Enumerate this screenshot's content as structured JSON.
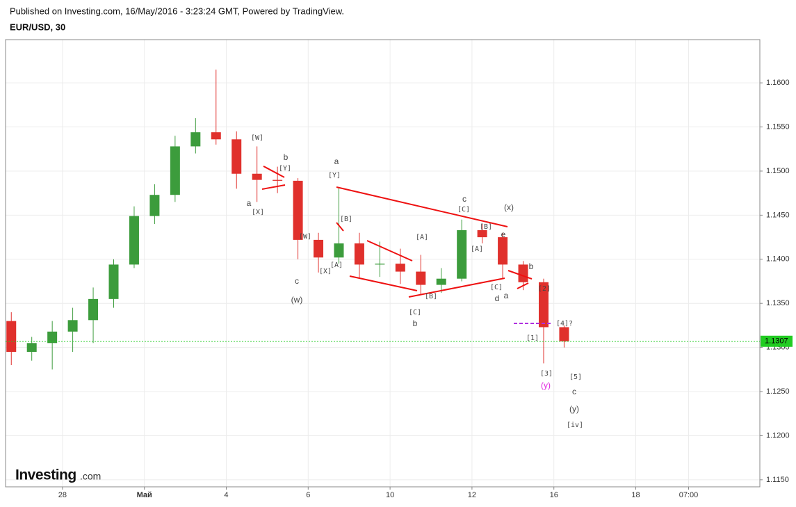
{
  "header": {
    "published": "Published on Investing.com, 16/May/2016 - 3:23:24 GMT, Powered by TradingView.",
    "symbol": "EUR/USD, 30"
  },
  "logo": {
    "main": "Investing",
    "suffix": ".com"
  },
  "chart_data": {
    "type": "candlestick",
    "x": [
      -1.25,
      -0.75,
      -0.25,
      0.25,
      0.75,
      1.25,
      1.75,
      2.25,
      2.75,
      3.25,
      3.75,
      4.25,
      4.75,
      5.25,
      5.75,
      6.25,
      6.75,
      7.25,
      7.75,
      8.25,
      8.75,
      9.25,
      9.75,
      10.25,
      10.75,
      11.25,
      11.75,
      12.25
    ],
    "open": [
      1.133,
      1.1295,
      1.1305,
      1.1318,
      1.1331,
      1.1355,
      1.1394,
      1.1449,
      1.1473,
      1.1528,
      1.1544,
      1.1536,
      1.1497,
      1.149,
      1.1489,
      1.1422,
      1.1402,
      1.1418,
      1.1394,
      1.1395,
      1.1386,
      1.1371,
      1.1378,
      1.1433,
      1.1425,
      1.1394,
      1.1374,
      1.1323
    ],
    "high": [
      1.134,
      1.1312,
      1.133,
      1.1345,
      1.1368,
      1.14,
      1.146,
      1.1485,
      1.154,
      1.156,
      1.1615,
      1.1545,
      1.1528,
      1.1505,
      1.1492,
      1.143,
      1.1481,
      1.143,
      1.142,
      1.1412,
      1.1405,
      1.139,
      1.1445,
      1.144,
      1.143,
      1.1398,
      1.1378,
      1.1325
    ],
    "low": [
      1.128,
      1.1285,
      1.1275,
      1.1295,
      1.1305,
      1.1345,
      1.139,
      1.144,
      1.1465,
      1.152,
      1.153,
      1.148,
      1.1465,
      1.1475,
      1.14,
      1.1385,
      1.1395,
      1.1378,
      1.138,
      1.1372,
      1.136,
      1.1362,
      1.1375,
      1.1418,
      1.1378,
      1.1365,
      1.1282,
      1.13
    ],
    "close": [
      1.1295,
      1.1305,
      1.1318,
      1.1331,
      1.1355,
      1.1394,
      1.1449,
      1.1473,
      1.1528,
      1.1544,
      1.1536,
      1.1497,
      1.149,
      1.1489,
      1.1422,
      1.1402,
      1.1418,
      1.1394,
      1.1395,
      1.1386,
      1.1371,
      1.1378,
      1.1433,
      1.1425,
      1.1394,
      1.1374,
      1.1323,
      1.1307
    ],
    "up_color": "#3c9c3c",
    "down_color": "#e0302c",
    "xlim": [
      -1.39,
      17.03
    ],
    "xticks": [
      {
        "value": 0,
        "label": "28"
      },
      {
        "value": 2,
        "label": "Май"
      },
      4,
      6,
      {
        "value": 8,
        "label": "10"
      },
      {
        "value": 10,
        "label": "12"
      },
      {
        "value": 12,
        "label": "16"
      },
      {
        "value": 14,
        "label": "18"
      },
      {
        "value": 15.29,
        "label": "07:00"
      }
    ],
    "ylim": [
      1.1142,
      1.1649
    ],
    "yticks": [
      {
        "value": 1.115,
        "label": "1.1150"
      },
      {
        "value": 1.12,
        "label": "1.1200"
      },
      {
        "value": 1.125,
        "label": "1.1250"
      },
      {
        "value": 1.13,
        "label": "1.1300"
      },
      {
        "value": 1.135,
        "label": "1.1350"
      },
      {
        "value": 1.14,
        "label": "1.1400"
      },
      {
        "value": 1.145,
        "label": "1.1450"
      },
      {
        "value": 1.15,
        "label": "1.1500"
      },
      {
        "value": 1.155,
        "label": "1.1550"
      },
      {
        "value": 1.16,
        "label": "1.1600"
      }
    ],
    "grid": true,
    "last_price": 1.1307,
    "last_price_color": "#22cc22",
    "annotations": [
      "[W]",
      "b",
      "[Y]",
      "a",
      "[Y]",
      "a",
      "[X]",
      "[B]",
      "[W]",
      "[A]",
      "[X]",
      "c",
      "(w)",
      "[A]",
      "[C]",
      "b",
      "[B]",
      "c",
      "[C]",
      "(x)",
      "[B]",
      "e",
      "[A]",
      "b",
      "[C]",
      "d",
      "a",
      "[2]",
      "[4]?",
      "[1]",
      "[3]",
      "(y)",
      "[5]",
      "c",
      "(y)",
      "[iv]"
    ]
  }
}
